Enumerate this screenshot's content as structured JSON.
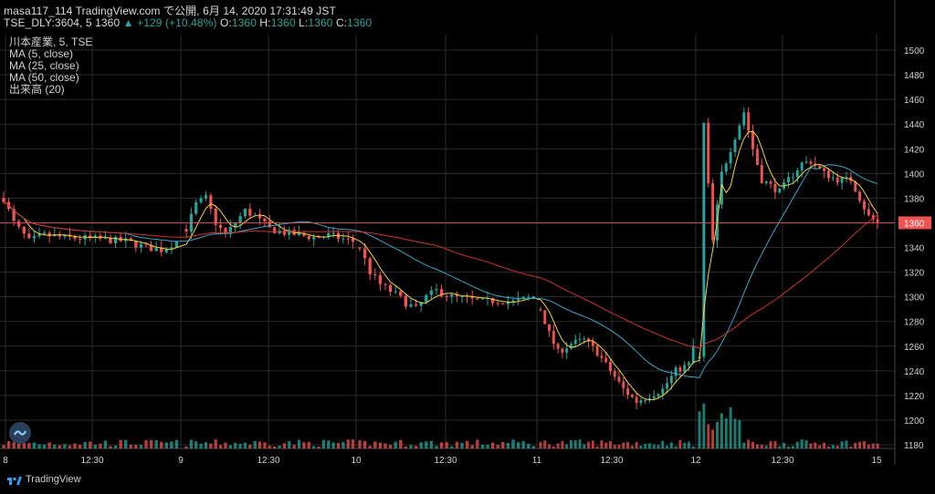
{
  "header": {
    "line1": "masa117_114 TradingView.com で公開, 6月 14, 2020 17:31:49 JST",
    "symbol": "TSE_DLY:3604, 5",
    "last": "1360",
    "change_arrow": "▲",
    "change": "+129 (+10.48%)",
    "o_label": "O:",
    "o_val": "1360",
    "h_label": "H:",
    "h_val": "1360",
    "l_label": "L:",
    "l_val": "1360",
    "c_label": "C:",
    "c_val": "1360"
  },
  "legend": [
    "川本産業, 5, TSE",
    "MA (5, close)",
    "MA (25, close)",
    "MA (50, close)",
    "出来高 (20)"
  ],
  "branding": "TradingView",
  "colors": {
    "up": "#26a69a",
    "down": "#ef5350",
    "ma5": "#f5d142",
    "ma25": "#3aa5c9",
    "ma50": "#d0342c",
    "grid": "#2b2b2b",
    "axis_text": "#d0d0d0",
    "price_line": "#ef5350"
  },
  "chart_data": {
    "type": "candlestick",
    "symbol": "TSE_DLY:3604",
    "interval": "5",
    "y_range": [
      1170,
      1510
    ],
    "y_ticks": [
      1180,
      1200,
      1220,
      1240,
      1260,
      1280,
      1300,
      1320,
      1340,
      1360,
      1380,
      1400,
      1420,
      1440,
      1460,
      1480,
      1500
    ],
    "x_ticks": [
      "8",
      "12:30",
      "9",
      "12:30",
      "10",
      "12:30",
      "11",
      "12:30",
      "12",
      "12:30",
      "15"
    ],
    "last_price": 1360,
    "grid": true,
    "segments": [
      {
        "day": "8",
        "anchors": [
          [
            0,
            1380
          ],
          [
            2,
            1360
          ],
          [
            5,
            1345
          ],
          [
            8,
            1350
          ],
          [
            12,
            1348
          ],
          [
            18,
            1347
          ],
          [
            24,
            1345
          ],
          [
            28,
            1340
          ],
          [
            31,
            1338
          ],
          [
            34,
            1345
          ]
        ]
      },
      {
        "day": "9",
        "anchors": [
          [
            0,
            1355
          ],
          [
            2,
            1375
          ],
          [
            4,
            1380
          ],
          [
            6,
            1360
          ],
          [
            8,
            1350
          ],
          [
            10,
            1360
          ],
          [
            12,
            1370
          ],
          [
            14,
            1365
          ],
          [
            17,
            1355
          ],
          [
            20,
            1352
          ],
          [
            23,
            1350
          ],
          [
            26,
            1348
          ],
          [
            29,
            1350
          ],
          [
            31,
            1348
          ],
          [
            34,
            1345
          ]
        ]
      },
      {
        "day": "10",
        "anchors": [
          [
            0,
            1340
          ],
          [
            2,
            1320
          ],
          [
            4,
            1310
          ],
          [
            7,
            1302
          ],
          [
            9,
            1295
          ],
          [
            11,
            1290
          ],
          [
            13,
            1300
          ],
          [
            15,
            1305
          ],
          [
            18,
            1300
          ],
          [
            21,
            1298
          ],
          [
            24,
            1296
          ],
          [
            27,
            1297
          ],
          [
            30,
            1296
          ],
          [
            34,
            1300
          ]
        ]
      },
      {
        "day": "11",
        "anchors": [
          [
            0,
            1290
          ],
          [
            2,
            1270
          ],
          [
            4,
            1255
          ],
          [
            7,
            1262
          ],
          [
            10,
            1265
          ],
          [
            13,
            1255
          ],
          [
            16,
            1240
          ],
          [
            19,
            1225
          ],
          [
            22,
            1215
          ],
          [
            25,
            1220
          ],
          [
            28,
            1225
          ],
          [
            31,
            1240
          ],
          [
            34,
            1245
          ],
          [
            35,
            1260
          ]
        ]
      },
      {
        "day": "12",
        "anchors": [
          [
            0,
            1250
          ],
          [
            1,
            1440
          ],
          [
            2,
            1390
          ],
          [
            3,
            1345
          ],
          [
            5,
            1400
          ],
          [
            8,
            1430
          ],
          [
            10,
            1450
          ],
          [
            12,
            1420
          ],
          [
            14,
            1395
          ],
          [
            16,
            1390
          ],
          [
            18,
            1385
          ],
          [
            20,
            1395
          ],
          [
            23,
            1408
          ],
          [
            25,
            1410
          ],
          [
            28,
            1400
          ],
          [
            31,
            1395
          ],
          [
            34,
            1395
          ],
          [
            36,
            1380
          ],
          [
            38,
            1365
          ],
          [
            40,
            1360
          ]
        ]
      }
    ],
    "series": [
      {
        "name": "MA (5, close)",
        "role": "ma5"
      },
      {
        "name": "MA (25, close)",
        "role": "ma25"
      },
      {
        "name": "MA (50, close)",
        "role": "ma50"
      },
      {
        "name": "出来高 (20)",
        "role": "volume"
      }
    ]
  }
}
